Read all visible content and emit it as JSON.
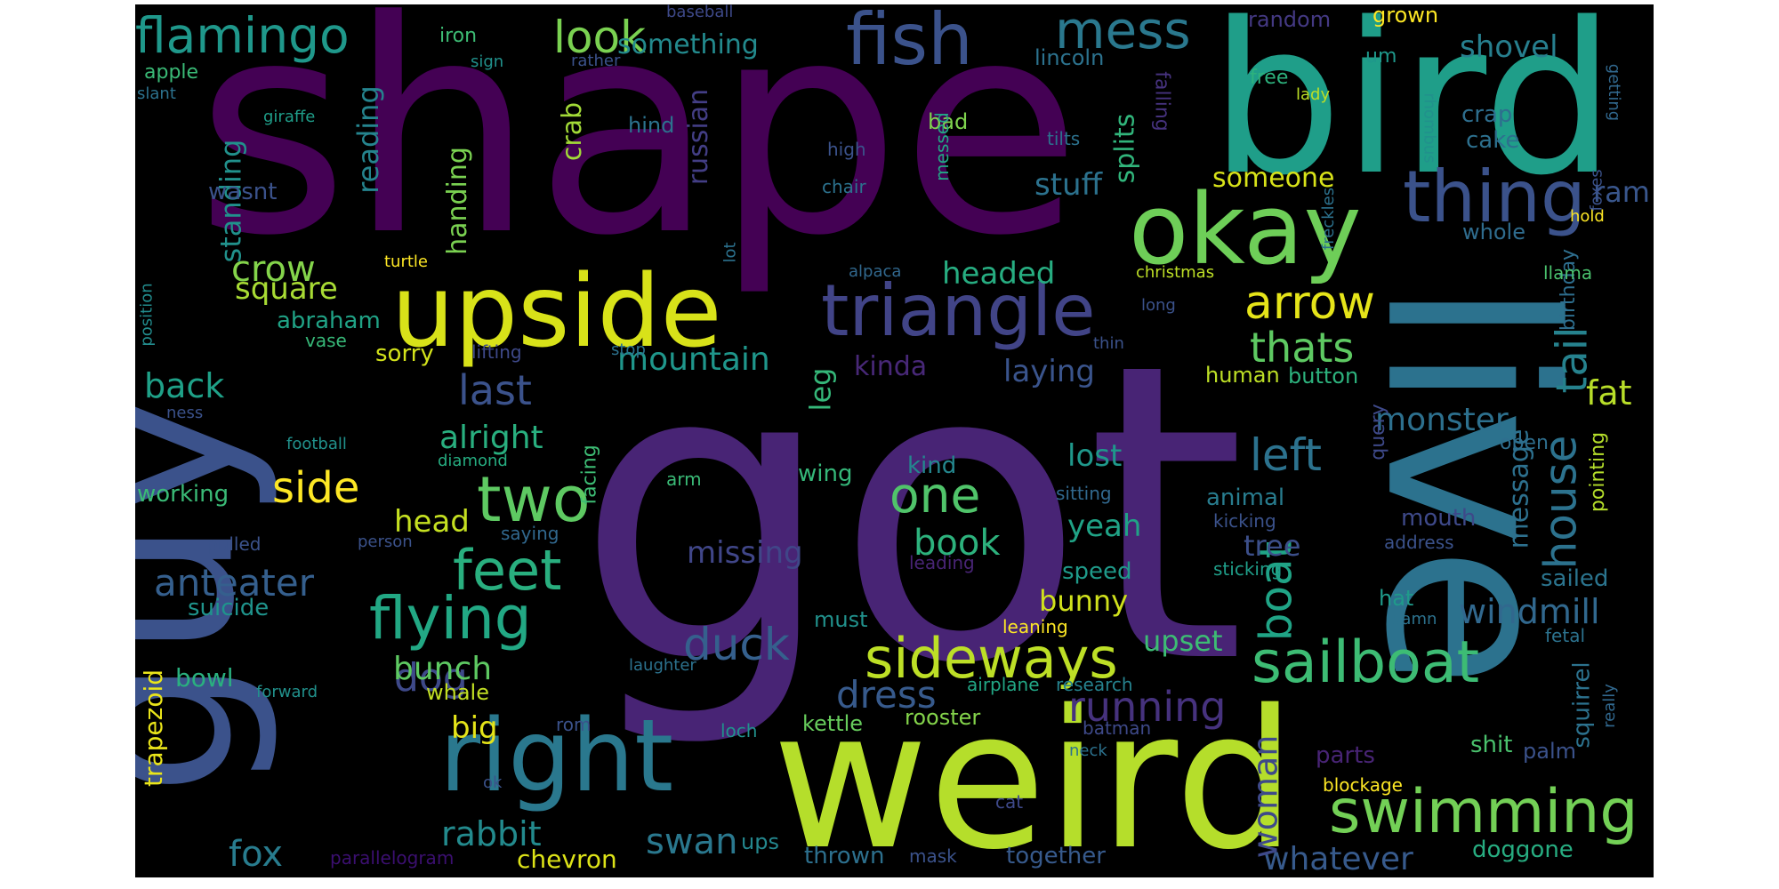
{
  "word_cloud": {
    "background": "#000000",
    "words": [
      {
        "text": "got",
        "color": "#482475"
      },
      {
        "text": "shape",
        "color": "#440154"
      },
      {
        "text": "guy",
        "color": "#3b528b"
      },
      {
        "text": "weird",
        "color": "#b5de2b"
      },
      {
        "text": "bird",
        "color": "#1f9e89"
      },
      {
        "text": "live",
        "color": "#2c728e"
      },
      {
        "text": "upside",
        "color": "#d8e219"
      },
      {
        "text": "right",
        "color": "#2a788e"
      },
      {
        "text": "okay",
        "color": "#6ece58"
      },
      {
        "text": "triangle",
        "color": "#414487"
      },
      {
        "text": "fish",
        "color": "#3b528b"
      },
      {
        "text": "thing",
        "color": "#3b528b"
      },
      {
        "text": "sailboat",
        "color": "#3dbc74"
      },
      {
        "text": "swimming",
        "color": "#73d056"
      },
      {
        "text": "sideways",
        "color": "#bddf26"
      },
      {
        "text": "flying",
        "color": "#22a884"
      },
      {
        "text": "mess",
        "color": "#2a788e"
      },
      {
        "text": "flamingo",
        "color": "#1f988b"
      },
      {
        "text": "two",
        "color": "#5ec962"
      },
      {
        "text": "feet",
        "color": "#29af7f"
      },
      {
        "text": "look",
        "color": "#7ad151"
      },
      {
        "text": "arrow",
        "color": "#e5e419"
      },
      {
        "text": "boat",
        "color": "#20a486"
      },
      {
        "text": "house",
        "color": "#2c728e"
      },
      {
        "text": "tail",
        "color": "#26828e"
      },
      {
        "text": "one",
        "color": "#50c46a"
      },
      {
        "text": "duck",
        "color": "#35608d"
      },
      {
        "text": "dog",
        "color": "#3e4989"
      },
      {
        "text": "side",
        "color": "#fde725"
      },
      {
        "text": "thats",
        "color": "#5ec962"
      },
      {
        "text": "left",
        "color": "#2c728e"
      },
      {
        "text": "running",
        "color": "#46327e"
      },
      {
        "text": "rabbit",
        "color": "#238a8d"
      },
      {
        "text": "whatever",
        "color": "#375a8c"
      },
      {
        "text": "windmill",
        "color": "#31688e"
      },
      {
        "text": "last",
        "color": "#3b528b"
      },
      {
        "text": "woman",
        "color": "#3e4989"
      },
      {
        "text": "dress",
        "color": "#375a8c"
      },
      {
        "text": "anteater",
        "color": "#355f8d"
      },
      {
        "text": "fox",
        "color": "#287c8e"
      },
      {
        "text": "swan",
        "color": "#2a788e"
      },
      {
        "text": "bunch",
        "color": "#5ec962"
      },
      {
        "text": "book",
        "color": "#2db27d"
      },
      {
        "text": "monster",
        "color": "#2d708e"
      },
      {
        "text": "fat",
        "color": "#b8de29"
      },
      {
        "text": "mountain",
        "color": "#1f968b"
      },
      {
        "text": "crow",
        "color": "#84d44b"
      },
      {
        "text": "square",
        "color": "#a8db34"
      },
      {
        "text": "headed",
        "color": "#27ad81"
      },
      {
        "text": "laying",
        "color": "#3a548c"
      },
      {
        "text": "alright",
        "color": "#29af7f"
      },
      {
        "text": "back",
        "color": "#1fa188"
      },
      {
        "text": "missing",
        "color": "#404688"
      },
      {
        "text": "head",
        "color": "#c5e021"
      },
      {
        "text": "yeah",
        "color": "#20a386"
      },
      {
        "text": "lost",
        "color": "#1f988b"
      },
      {
        "text": "bunny",
        "color": "#d0e11c"
      },
      {
        "text": "upset",
        "color": "#3dbc74"
      },
      {
        "text": "big",
        "color": "#e5e419"
      },
      {
        "text": "message",
        "color": "#2d708e"
      },
      {
        "text": "standing",
        "color": "#21918c"
      },
      {
        "text": "reading",
        "color": "#25848e"
      },
      {
        "text": "handing",
        "color": "#7ad151"
      },
      {
        "text": "crab",
        "color": "#a2da37"
      },
      {
        "text": "russian",
        "color": "#433e85"
      },
      {
        "text": "stuff",
        "color": "#2c728e"
      },
      {
        "text": "someone",
        "color": "#d8e219"
      },
      {
        "text": "something",
        "color": "#238a8d"
      },
      {
        "text": "shovel",
        "color": "#277f8e"
      },
      {
        "text": "ram",
        "color": "#39568c"
      },
      {
        "text": "kinda",
        "color": "#482878"
      },
      {
        "text": "splits",
        "color": "#31b57b"
      },
      {
        "text": "leg",
        "color": "#35b779"
      },
      {
        "text": "trapezoid",
        "color": "#eae51a"
      },
      {
        "text": "bowl",
        "color": "#2ab07f"
      },
      {
        "text": "sorry",
        "color": "#d2e21b"
      },
      {
        "text": "abraham",
        "color": "#20a386"
      },
      {
        "text": "working",
        "color": "#3aba76"
      },
      {
        "text": "suicide",
        "color": "#1f948c"
      },
      {
        "text": "chevron",
        "color": "#dde318"
      },
      {
        "text": "ups",
        "color": "#24878e"
      },
      {
        "text": "thrown",
        "color": "#2d708e"
      },
      {
        "text": "together",
        "color": "#375a8c"
      },
      {
        "text": "doggone",
        "color": "#27ad81"
      },
      {
        "text": "palm",
        "color": "#3b528b"
      },
      {
        "text": "shit",
        "color": "#4ac16d"
      },
      {
        "text": "parts",
        "color": "#482475"
      },
      {
        "text": "squirrel",
        "color": "#2c728e"
      },
      {
        "text": "sailed",
        "color": "#2b748e"
      },
      {
        "text": "whale",
        "color": "#c2df23"
      },
      {
        "text": "kettle",
        "color": "#67cc5c"
      },
      {
        "text": "rooster",
        "color": "#84d44b"
      },
      {
        "text": "must",
        "color": "#21918c"
      },
      {
        "text": "tree",
        "color": "#3c4f8a"
      },
      {
        "text": "speed",
        "color": "#1f9a8a"
      },
      {
        "text": "kind",
        "color": "#24878e"
      },
      {
        "text": "wing",
        "color": "#35b779"
      },
      {
        "text": "animal",
        "color": "#287c8e"
      },
      {
        "text": "mouth",
        "color": "#3e4989"
      },
      {
        "text": "pointing",
        "color": "#b5de2b"
      },
      {
        "text": "birthday",
        "color": "#2e6e8e"
      },
      {
        "text": "hat",
        "color": "#1f9a8a"
      },
      {
        "text": "crap",
        "color": "#2e6e8e"
      },
      {
        "text": "cake",
        "color": "#2d708e"
      },
      {
        "text": "whole",
        "color": "#2f6c8e"
      },
      {
        "text": "human",
        "color": "#bddf26"
      },
      {
        "text": "button",
        "color": "#2db27d"
      },
      {
        "text": "query",
        "color": "#3e4989"
      },
      {
        "text": "open",
        "color": "#2e6e8e"
      },
      {
        "text": "random",
        "color": "#443983"
      },
      {
        "text": "grown",
        "color": "#fde725"
      },
      {
        "text": "free",
        "color": "#2db27d"
      },
      {
        "text": "um",
        "color": "#1f988b"
      },
      {
        "text": "lincoln",
        "color": "#2c728e"
      },
      {
        "text": "falling",
        "color": "#46327e"
      },
      {
        "text": "bad",
        "color": "#7fd34e"
      },
      {
        "text": "hind",
        "color": "#2c728e"
      },
      {
        "text": "apple",
        "color": "#3aba76"
      },
      {
        "text": "iron",
        "color": "#3dbc74"
      },
      {
        "text": "sign",
        "color": "#21918c"
      },
      {
        "text": "rather",
        "color": "#3b528b"
      },
      {
        "text": "baseball",
        "color": "#3e4989"
      },
      {
        "text": "slant",
        "color": "#2c728e"
      },
      {
        "text": "giraffe",
        "color": "#1f9e89"
      },
      {
        "text": "wasnt",
        "color": "#3b528b"
      },
      {
        "text": "facing",
        "color": "#3dbc74"
      },
      {
        "text": "turtle",
        "color": "#fde725"
      },
      {
        "text": "vase",
        "color": "#37b878"
      },
      {
        "text": "position",
        "color": "#228c8d"
      },
      {
        "text": "ness",
        "color": "#3b528b"
      },
      {
        "text": "football",
        "color": "#21918c"
      },
      {
        "text": "diamond",
        "color": "#26ad81"
      },
      {
        "text": "pulled",
        "color": "#3b528b"
      },
      {
        "text": "person",
        "color": "#3b528b"
      },
      {
        "text": "saying",
        "color": "#31688e"
      },
      {
        "text": "forward",
        "color": "#21918c"
      },
      {
        "text": "arm",
        "color": "#3aba76"
      },
      {
        "text": "laughter",
        "color": "#2c728e"
      },
      {
        "text": "parallelogram",
        "color": "#3b0f70"
      },
      {
        "text": "rom",
        "color": "#3b528b"
      },
      {
        "text": "loch",
        "color": "#21918c"
      },
      {
        "text": "mask",
        "color": "#3b528b"
      },
      {
        "text": "airplane",
        "color": "#22a785"
      },
      {
        "text": "research",
        "color": "#26828e"
      },
      {
        "text": "batman",
        "color": "#3e4989"
      },
      {
        "text": "neck",
        "color": "#2c728e"
      },
      {
        "text": "cat",
        "color": "#3e4989"
      },
      {
        "text": "ok",
        "color": "#3b528b"
      },
      {
        "text": "leaning",
        "color": "#fde725"
      },
      {
        "text": "damn",
        "color": "#2c728e"
      },
      {
        "text": "blockage",
        "color": "#fde725"
      },
      {
        "text": "fetal",
        "color": "#2c728e"
      },
      {
        "text": "really",
        "color": "#31688e"
      },
      {
        "text": "sticking",
        "color": "#1f9e89"
      },
      {
        "text": "leading",
        "color": "#482475"
      },
      {
        "text": "kicking",
        "color": "#3b528b"
      },
      {
        "text": "address",
        "color": "#3b528b"
      },
      {
        "text": "sitting",
        "color": "#31688e"
      },
      {
        "text": "high",
        "color": "#3b528b"
      },
      {
        "text": "chair",
        "color": "#2c728e"
      },
      {
        "text": "tilts",
        "color": "#2c728e"
      },
      {
        "text": "messed",
        "color": "#22a785"
      },
      {
        "text": "alpaca",
        "color": "#31688e"
      },
      {
        "text": "lot",
        "color": "#2c728e"
      },
      {
        "text": "christmas",
        "color": "#bddf26"
      },
      {
        "text": "long",
        "color": "#3b528b"
      },
      {
        "text": "thin",
        "color": "#3b528b"
      },
      {
        "text": "stop",
        "color": "#2c728e"
      },
      {
        "text": "lifting",
        "color": "#3e4989"
      },
      {
        "text": "freckles",
        "color": "#2c728e"
      },
      {
        "text": "rhombus",
        "color": "#21918c"
      },
      {
        "text": "lady",
        "color": "#bddf26"
      },
      {
        "text": "llama",
        "color": "#4ac16d"
      },
      {
        "text": "hold",
        "color": "#fde725"
      },
      {
        "text": "foxes",
        "color": "#3b528b"
      },
      {
        "text": "getting",
        "color": "#31688e"
      }
    ]
  }
}
